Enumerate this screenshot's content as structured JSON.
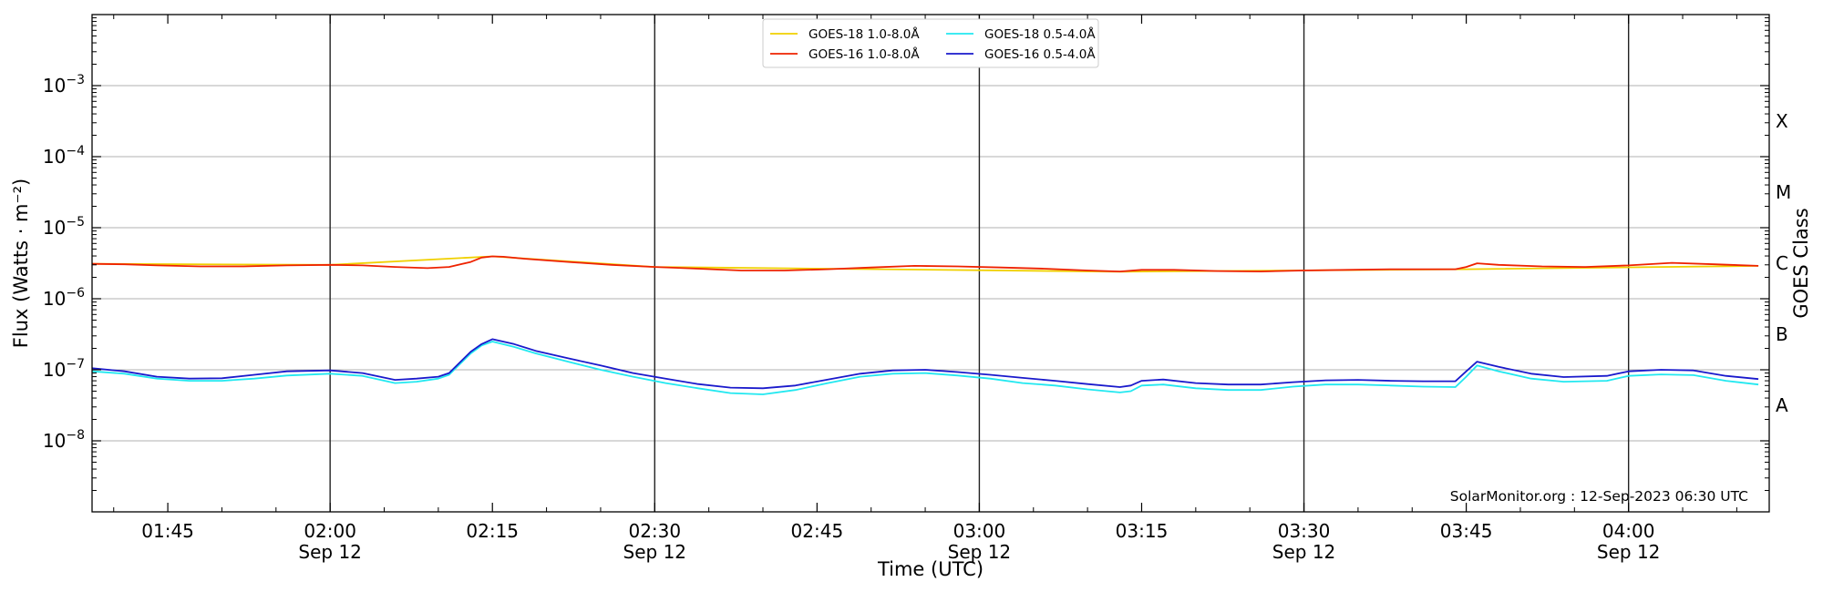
{
  "chart_data": {
    "type": "line",
    "xlabel": "Time (UTC)",
    "ylabel": "Flux (Watts · m⁻²)",
    "ylabel_right": "GOES Class",
    "yscale": "log",
    "ylim": [
      1e-09,
      0.01
    ],
    "xlim": [
      "2023-09-12 01:38",
      "2023-09-12 04:13"
    ],
    "grid": true,
    "legend_position": "top-center",
    "x_ticks": [
      {
        "time": "01:45",
        "date": ""
      },
      {
        "time": "02:00",
        "date": "Sep 12"
      },
      {
        "time": "02:15",
        "date": ""
      },
      {
        "time": "02:30",
        "date": "Sep 12"
      },
      {
        "time": "02:45",
        "date": ""
      },
      {
        "time": "03:00",
        "date": "Sep 12"
      },
      {
        "time": "03:15",
        "date": ""
      },
      {
        "time": "03:30",
        "date": "Sep 12"
      },
      {
        "time": "03:45",
        "date": ""
      },
      {
        "time": "04:00",
        "date": "Sep 12"
      }
    ],
    "y_ticks": [
      {
        "value": 1e-08,
        "base": "10",
        "exp": "−8"
      },
      {
        "value": 1e-07,
        "base": "10",
        "exp": "−7"
      },
      {
        "value": 1e-06,
        "base": "10",
        "exp": "−6"
      },
      {
        "value": 1e-05,
        "base": "10",
        "exp": "−5"
      },
      {
        "value": 0.0001,
        "base": "10",
        "exp": "−4"
      },
      {
        "value": 0.001,
        "base": "10",
        "exp": "−3"
      }
    ],
    "goes_classes": [
      {
        "label": "A",
        "value": 3.16e-08
      },
      {
        "label": "B",
        "value": 3.16e-07
      },
      {
        "label": "C",
        "value": 3.16e-06
      },
      {
        "label": "M",
        "value": 3.16e-05
      },
      {
        "label": "X",
        "value": 0.000316
      }
    ],
    "credit": "SolarMonitor.org : 12-Sep-2023 06:30 UTC",
    "series": [
      {
        "name": "GOES-18 1.0-8.0Å",
        "color": "#f0d000",
        "points": [
          [
            "01:38",
            3.1e-06
          ],
          [
            "02:00",
            3e-06
          ],
          [
            "02:15",
            3.95e-06
          ],
          [
            "02:30",
            2.8e-06
          ],
          [
            "03:13",
            2.4e-06
          ],
          [
            "03:45",
            2.6e-06
          ],
          [
            "04:12",
            2.9e-06
          ]
        ]
      },
      {
        "name": "GOES-16 1.0-8.0Å",
        "color": "#ee2200",
        "points": [
          [
            "01:38",
            3.1e-06
          ],
          [
            "01:41",
            3.05e-06
          ],
          [
            "01:44",
            2.95e-06
          ],
          [
            "01:48",
            2.85e-06
          ],
          [
            "01:52",
            2.85e-06
          ],
          [
            "01:56",
            2.95e-06
          ],
          [
            "02:00",
            3e-06
          ],
          [
            "02:03",
            2.95e-06
          ],
          [
            "02:06",
            2.8e-06
          ],
          [
            "02:09",
            2.7e-06
          ],
          [
            "02:11",
            2.8e-06
          ],
          [
            "02:13",
            3.3e-06
          ],
          [
            "02:14",
            3.8e-06
          ],
          [
            "02:15",
            3.95e-06
          ],
          [
            "02:16",
            3.9e-06
          ],
          [
            "02:18",
            3.65e-06
          ],
          [
            "02:22",
            3.3e-06
          ],
          [
            "02:26",
            3e-06
          ],
          [
            "02:30",
            2.8e-06
          ],
          [
            "02:34",
            2.65e-06
          ],
          [
            "02:38",
            2.5e-06
          ],
          [
            "02:42",
            2.5e-06
          ],
          [
            "02:46",
            2.6e-06
          ],
          [
            "02:50",
            2.75e-06
          ],
          [
            "02:54",
            2.9e-06
          ],
          [
            "02:58",
            2.85e-06
          ],
          [
            "03:02",
            2.75e-06
          ],
          [
            "03:06",
            2.65e-06
          ],
          [
            "03:10",
            2.5e-06
          ],
          [
            "03:13",
            2.42e-06
          ],
          [
            "03:15",
            2.55e-06
          ],
          [
            "03:18",
            2.55e-06
          ],
          [
            "03:22",
            2.45e-06
          ],
          [
            "03:26",
            2.42e-06
          ],
          [
            "03:30",
            2.5e-06
          ],
          [
            "03:34",
            2.55e-06
          ],
          [
            "03:38",
            2.6e-06
          ],
          [
            "03:41",
            2.6e-06
          ],
          [
            "03:44",
            2.6e-06
          ],
          [
            "03:45",
            2.8e-06
          ],
          [
            "03:46",
            3.15e-06
          ],
          [
            "03:48",
            3e-06
          ],
          [
            "03:52",
            2.85e-06
          ],
          [
            "03:56",
            2.8e-06
          ],
          [
            "04:00",
            2.95e-06
          ],
          [
            "04:04",
            3.2e-06
          ],
          [
            "04:08",
            3.05e-06
          ],
          [
            "04:12",
            2.9e-06
          ]
        ]
      },
      {
        "name": "GOES-18 0.5-4.0Å",
        "color": "#22e8f0",
        "points": [
          [
            "01:38",
            9.5e-08
          ],
          [
            "01:41",
            8.8e-08
          ],
          [
            "01:44",
            7.5e-08
          ],
          [
            "01:47",
            7e-08
          ],
          [
            "01:50",
            7e-08
          ],
          [
            "01:53",
            7.5e-08
          ],
          [
            "01:56",
            8.3e-08
          ],
          [
            "02:00",
            8.8e-08
          ],
          [
            "02:03",
            8.2e-08
          ],
          [
            "02:06",
            6.5e-08
          ],
          [
            "02:08",
            6.8e-08
          ],
          [
            "02:10",
            7.5e-08
          ],
          [
            "02:11",
            8.5e-08
          ],
          [
            "02:13",
            1.7e-07
          ],
          [
            "02:14",
            2.2e-07
          ],
          [
            "02:15",
            2.5e-07
          ],
          [
            "02:17",
            2.1e-07
          ],
          [
            "02:19",
            1.7e-07
          ],
          [
            "02:22",
            1.3e-07
          ],
          [
            "02:25",
            1e-07
          ],
          [
            "02:28",
            8e-08
          ],
          [
            "02:31",
            6.5e-08
          ],
          [
            "02:34",
            5.5e-08
          ],
          [
            "02:37",
            4.7e-08
          ],
          [
            "02:40",
            4.5e-08
          ],
          [
            "02:43",
            5.2e-08
          ],
          [
            "02:46",
            6.5e-08
          ],
          [
            "02:49",
            8e-08
          ],
          [
            "02:52",
            8.8e-08
          ],
          [
            "02:55",
            9e-08
          ],
          [
            "02:58",
            8.3e-08
          ],
          [
            "03:01",
            7.5e-08
          ],
          [
            "03:04",
            6.5e-08
          ],
          [
            "03:07",
            6e-08
          ],
          [
            "03:10",
            5.3e-08
          ],
          [
            "03:13",
            4.8e-08
          ],
          [
            "03:14",
            5e-08
          ],
          [
            "03:15",
            6e-08
          ],
          [
            "03:17",
            6.2e-08
          ],
          [
            "03:20",
            5.5e-08
          ],
          [
            "03:23",
            5.2e-08
          ],
          [
            "03:26",
            5.2e-08
          ],
          [
            "03:29",
            5.8e-08
          ],
          [
            "03:32",
            6.2e-08
          ],
          [
            "03:35",
            6.2e-08
          ],
          [
            "03:38",
            6e-08
          ],
          [
            "03:41",
            5.8e-08
          ],
          [
            "03:44",
            5.7e-08
          ],
          [
            "03:45",
            8e-08
          ],
          [
            "03:46",
            1.15e-07
          ],
          [
            "03:48",
            9.5e-08
          ],
          [
            "03:51",
            7.5e-08
          ],
          [
            "03:54",
            6.8e-08
          ],
          [
            "03:58",
            7e-08
          ],
          [
            "04:00",
            8.2e-08
          ],
          [
            "04:03",
            8.6e-08
          ],
          [
            "04:06",
            8.4e-08
          ],
          [
            "04:09",
            7e-08
          ],
          [
            "04:12",
            6.2e-08
          ]
        ]
      },
      {
        "name": "GOES-16 0.5-4.0Å",
        "color": "#1a1acc",
        "points": [
          [
            "01:38",
            1.05e-07
          ],
          [
            "01:41",
            9.5e-08
          ],
          [
            "01:44",
            8e-08
          ],
          [
            "01:47",
            7.5e-08
          ],
          [
            "01:50",
            7.6e-08
          ],
          [
            "01:53",
            8.5e-08
          ],
          [
            "01:56",
            9.5e-08
          ],
          [
            "02:00",
            9.8e-08
          ],
          [
            "02:03",
            9e-08
          ],
          [
            "02:06",
            7.2e-08
          ],
          [
            "02:08",
            7.5e-08
          ],
          [
            "02:10",
            8e-08
          ],
          [
            "02:11",
            9e-08
          ],
          [
            "02:13",
            1.8e-07
          ],
          [
            "02:14",
            2.3e-07
          ],
          [
            "02:15",
            2.7e-07
          ],
          [
            "02:17",
            2.3e-07
          ],
          [
            "02:19",
            1.85e-07
          ],
          [
            "02:22",
            1.45e-07
          ],
          [
            "02:25",
            1.15e-07
          ],
          [
            "02:28",
            9e-08
          ],
          [
            "02:31",
            7.5e-08
          ],
          [
            "02:34",
            6.3e-08
          ],
          [
            "02:37",
            5.6e-08
          ],
          [
            "02:40",
            5.5e-08
          ],
          [
            "02:43",
            6e-08
          ],
          [
            "02:46",
            7.3e-08
          ],
          [
            "02:49",
            8.8e-08
          ],
          [
            "02:52",
            9.8e-08
          ],
          [
            "02:55",
            1e-07
          ],
          [
            "02:58",
            9.3e-08
          ],
          [
            "03:01",
            8.5e-08
          ],
          [
            "03:04",
            7.7e-08
          ],
          [
            "03:07",
            7e-08
          ],
          [
            "03:10",
            6.3e-08
          ],
          [
            "03:13",
            5.7e-08
          ],
          [
            "03:14",
            6e-08
          ],
          [
            "03:15",
            7e-08
          ],
          [
            "03:17",
            7.3e-08
          ],
          [
            "03:20",
            6.5e-08
          ],
          [
            "03:23",
            6.2e-08
          ],
          [
            "03:26",
            6.2e-08
          ],
          [
            "03:29",
            6.7e-08
          ],
          [
            "03:32",
            7.1e-08
          ],
          [
            "03:35",
            7.2e-08
          ],
          [
            "03:38",
            7e-08
          ],
          [
            "03:41",
            6.9e-08
          ],
          [
            "03:44",
            6.9e-08
          ],
          [
            "03:45",
            9.5e-08
          ],
          [
            "03:46",
            1.3e-07
          ],
          [
            "03:48",
            1.1e-07
          ],
          [
            "03:51",
            8.8e-08
          ],
          [
            "03:54",
            7.9e-08
          ],
          [
            "03:58",
            8.2e-08
          ],
          [
            "04:00",
            9.5e-08
          ],
          [
            "04:03",
            1e-07
          ],
          [
            "04:06",
            9.8e-08
          ],
          [
            "04:09",
            8.2e-08
          ],
          [
            "04:12",
            7.4e-08
          ]
        ]
      }
    ]
  }
}
